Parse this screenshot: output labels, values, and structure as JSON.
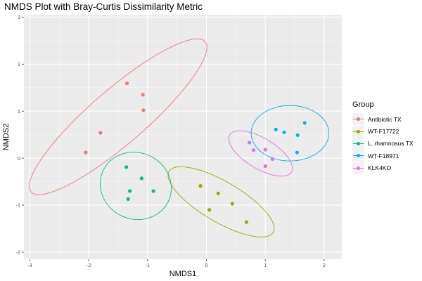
{
  "chart_data": {
    "type": "scatter",
    "title": "NMDS Plot with Bray-Curtis Dissimilarity Metric",
    "xlabel": "NMDS1",
    "ylabel": "NMDS2",
    "xlim": [
      -3.1,
      2.3
    ],
    "ylim": [
      -2.15,
      3.05
    ],
    "x_ticks": [
      -3,
      -2,
      -1,
      0,
      1,
      2
    ],
    "y_ticks": [
      -2,
      -1,
      0,
      1,
      2,
      3
    ],
    "grid": true,
    "legend_position": "right",
    "legend_title": "Group",
    "series": [
      {
        "name": "Antibiotic TX",
        "color": "#F8766D",
        "points": [
          [
            -2.05,
            0.12
          ],
          [
            -1.8,
            0.54
          ],
          [
            -1.35,
            1.59
          ],
          [
            -1.08,
            1.35
          ],
          [
            -1.07,
            1.02
          ]
        ],
        "ellipse": {
          "center": [
            -1.5,
            0.88
          ],
          "semi_major": 2.18,
          "semi_minor": 0.52,
          "angle_deg": 48
        }
      },
      {
        "name": "WT-F17722",
        "color": "#A3A500",
        "points": [
          [
            -0.1,
            -0.59
          ],
          [
            0.05,
            -1.1
          ],
          [
            0.2,
            -0.75
          ],
          [
            0.44,
            -0.97
          ],
          [
            0.68,
            -1.36
          ]
        ],
        "ellipse": {
          "center": [
            0.25,
            -0.93
          ],
          "semi_major": 1.1,
          "semi_minor": 0.4,
          "angle_deg": -38
        }
      },
      {
        "name": "L. rhamnosus TX",
        "color": "#00BF7D",
        "points": [
          [
            -1.36,
            -0.19
          ],
          [
            -1.1,
            -0.43
          ],
          [
            -1.3,
            -0.7
          ],
          [
            -0.9,
            -0.7
          ],
          [
            -1.33,
            -0.87
          ]
        ],
        "ellipse": {
          "center": [
            -1.2,
            -0.59
          ],
          "semi_major": 0.72,
          "semi_minor": 0.6,
          "angle_deg": 100
        }
      },
      {
        "name": "WT-F18971",
        "color": "#00B0F6",
        "points": [
          [
            1.18,
            0.61
          ],
          [
            1.32,
            0.55
          ],
          [
            1.55,
            0.49
          ],
          [
            1.67,
            0.75
          ],
          [
            1.54,
            0.12
          ]
        ],
        "ellipse": {
          "center": [
            1.42,
            0.53
          ],
          "semi_major": 0.66,
          "semi_minor": 0.59,
          "angle_deg": 0
        }
      },
      {
        "name": "KLK4KO",
        "color": "#E76BF3",
        "points": [
          [
            0.73,
            0.33
          ],
          [
            0.8,
            0.17
          ],
          [
            1.0,
            0.18
          ],
          [
            1.12,
            -0.02
          ],
          [
            1.0,
            -0.17
          ]
        ],
        "ellipse": {
          "center": [
            0.92,
            0.1
          ],
          "semi_major": 0.66,
          "semi_minor": 0.3,
          "angle_deg": -40
        }
      }
    ]
  }
}
